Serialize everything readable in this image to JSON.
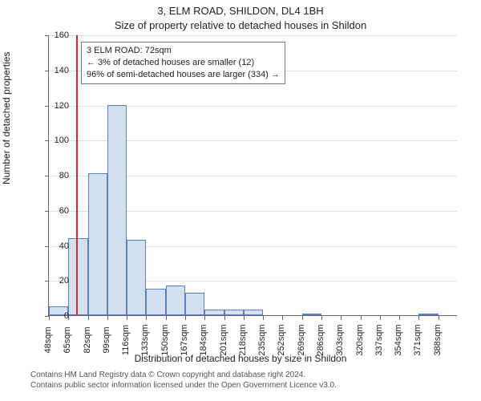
{
  "title_main": "3, ELM ROAD, SHILDON, DL4 1BH",
  "title_sub": "Size of property relative to detached houses in Shildon",
  "ylabel": "Number of detached properties",
  "xlabel": "Distribution of detached houses by size in Shildon",
  "footer_line1": "Contains HM Land Registry data © Crown copyright and database right 2024.",
  "footer_line2": "Contains public sector information licensed under the Open Government Licence v3.0.",
  "chart": {
    "type": "histogram",
    "ylim": [
      0,
      160
    ],
    "ytick_step": 20,
    "x_start": 48,
    "x_step": 17,
    "x_count": 21,
    "x_unit": "sqm",
    "bar_fill": "#d3e0f2",
    "bar_stroke": "#5b7fb8",
    "grid_color": "#e0e0e0",
    "axis_color": "#666666",
    "tick_fontsize": 11,
    "values": [
      5,
      44,
      81,
      120,
      43,
      15,
      17,
      13,
      3,
      3,
      3,
      0,
      0,
      1,
      0,
      0,
      0,
      0,
      0,
      1,
      0
    ],
    "marker": {
      "value": 72,
      "color": "#d22d2d"
    },
    "callout": {
      "line1": "3 ELM ROAD: 72sqm",
      "line2": "← 3% of detached houses are smaller (12)",
      "line3": "96% of semi-detached houses are larger (334) →"
    }
  }
}
